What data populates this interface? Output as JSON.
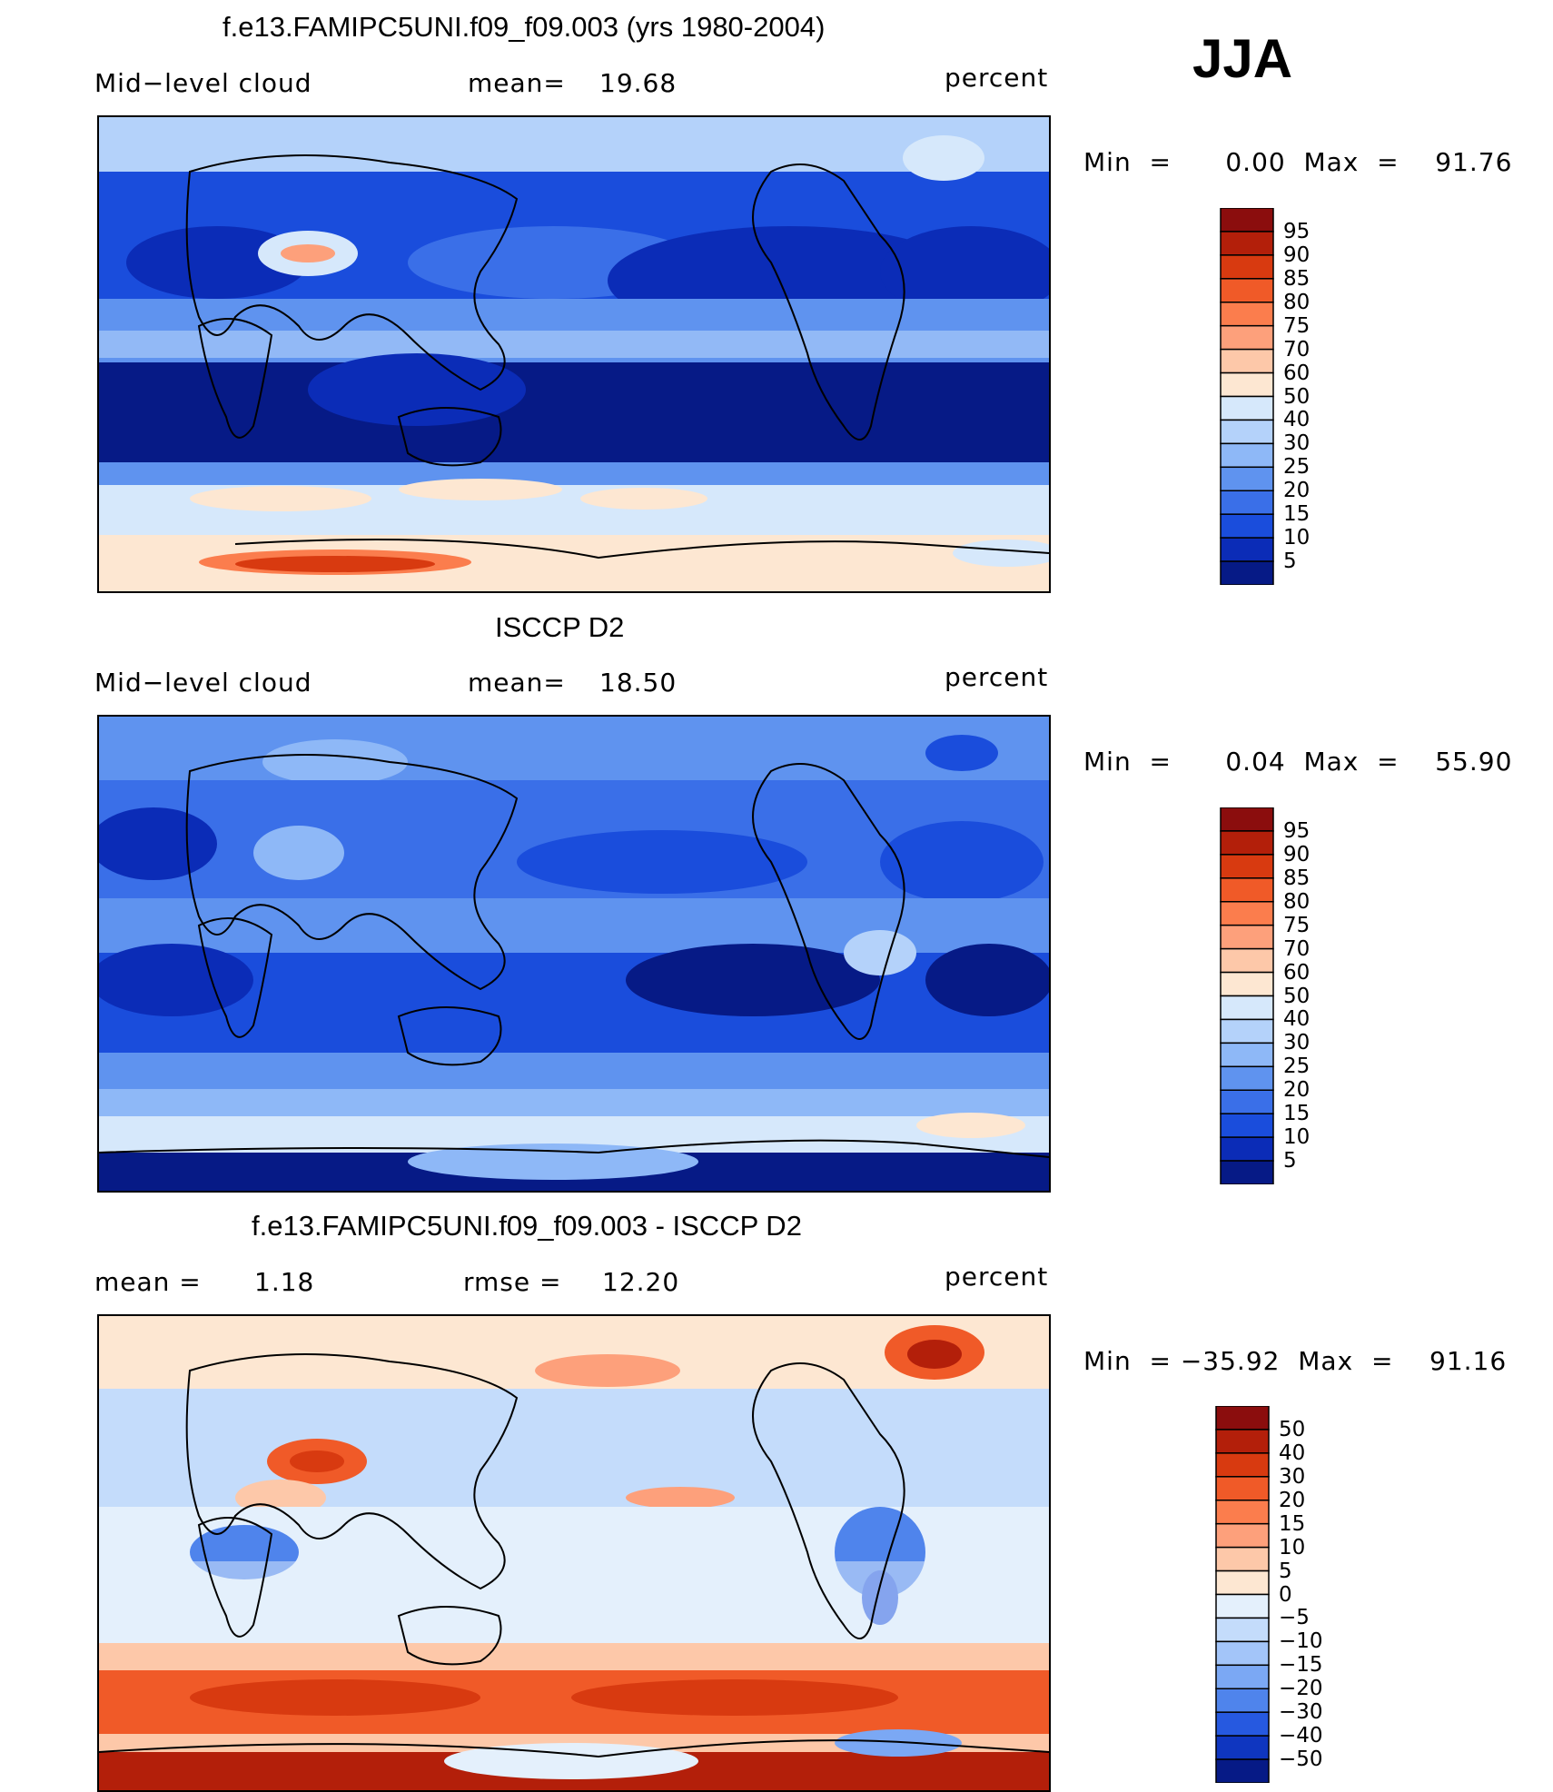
{
  "season": "JJA",
  "panels": [
    {
      "title": "f.e13.FAMIPC5UNI.f09_f09.003 (yrs 1980-2004)",
      "left_text": "Mid−level  cloud",
      "mean_label": "mean=",
      "mean_value": "19.68",
      "units": "percent",
      "minmax": "Min  =      0.00  Max  =    91.76",
      "levels": [
        "95",
        "90",
        "85",
        "80",
        "75",
        "70",
        "60",
        "50",
        "40",
        "30",
        "25",
        "20",
        "15",
        "10",
        "5"
      ],
      "colors": [
        "#8b0d0d",
        "#b31f0a",
        "#d83a10",
        "#f05a28",
        "#fb7d4d",
        "#fda07b",
        "#fdc8a9",
        "#fde7d2",
        "#d6e8fb",
        "#b4d2fa",
        "#8eb8f7",
        "#5f93ef",
        "#3a6fe8",
        "#1a4ddc",
        "#0b2cb7",
        "#061a86"
      ]
    },
    {
      "title": "ISCCP D2",
      "left_text": "Mid−level  cloud",
      "mean_label": "mean=",
      "mean_value": "18.50",
      "units": "percent",
      "minmax": "Min  =      0.04  Max  =    55.90",
      "levels": [
        "95",
        "90",
        "85",
        "80",
        "75",
        "70",
        "60",
        "50",
        "40",
        "30",
        "25",
        "20",
        "15",
        "10",
        "5"
      ],
      "colors": [
        "#8b0d0d",
        "#b31f0a",
        "#d83a10",
        "#f05a28",
        "#fb7d4d",
        "#fda07b",
        "#fdc8a9",
        "#fde7d2",
        "#d6e8fb",
        "#b4d2fa",
        "#8eb8f7",
        "#5f93ef",
        "#3a6fe8",
        "#1a4ddc",
        "#0b2cb7",
        "#061a86"
      ]
    },
    {
      "title": "f.e13.FAMIPC5UNI.f09_f09.003 - ISCCP D2",
      "left_text": "mean  =",
      "mean_label": "rmse  =",
      "mean_value": "12.20",
      "left_value": "1.18",
      "units": "percent",
      "minmax": "Min  = −35.92  Max  =    91.16",
      "levels": [
        "50",
        "40",
        "30",
        "20",
        "15",
        "10",
        "5",
        "0",
        "−5",
        "−10",
        "−15",
        "−20",
        "−30",
        "−40",
        "−50"
      ],
      "colors": [
        "#8b0d0d",
        "#b31f0a",
        "#d83a10",
        "#f05a28",
        "#fb7d4d",
        "#fda07b",
        "#fdc8a9",
        "#fde7d2",
        "#e4f0fc",
        "#c4dcfb",
        "#a3c5f9",
        "#7ba8f4",
        "#4f84ec",
        "#2659e0",
        "#0f36c0",
        "#061a86"
      ]
    }
  ]
}
